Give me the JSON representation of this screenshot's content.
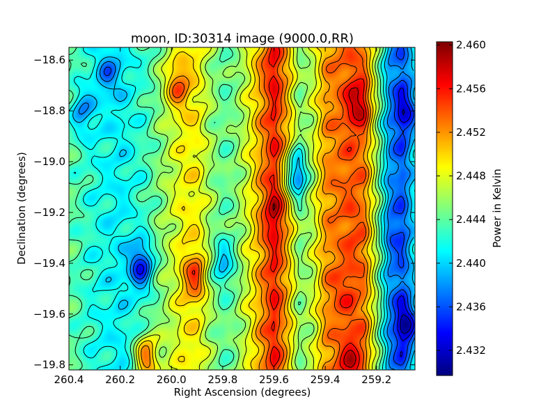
{
  "chart_data": {
    "type": "heatmap",
    "title": "moon, ID:30314 image (9000.0,RR)",
    "xlabel": "Right Ascension (degrees)",
    "ylabel": "Declination (degrees)",
    "colorbar_label": "Power in Kelvin",
    "xlim": [
      260.4,
      259.05
    ],
    "ylim": [
      -19.82,
      -18.55
    ],
    "x_ticks": [
      260.4,
      260.2,
      260.0,
      259.8,
      259.6,
      259.4,
      259.2
    ],
    "x_tick_labels": [
      "260.4",
      "260.2",
      "260.0",
      "259.8",
      "259.6",
      "259.4",
      "259.2"
    ],
    "y_ticks": [
      -18.6,
      -18.8,
      -19.0,
      -19.2,
      -19.4,
      -19.6,
      -19.8
    ],
    "y_tick_labels": [
      "−18.6",
      "−18.8",
      "−19.0",
      "−19.2",
      "−19.4",
      "−19.6",
      "−19.8"
    ],
    "colorbar_range": [
      2.4297,
      2.4603
    ],
    "colorbar_ticks": [
      2.432,
      2.436,
      2.44,
      2.444,
      2.448,
      2.452,
      2.456,
      2.46
    ],
    "colorbar_tick_labels": [
      "2.432",
      "2.436",
      "2.440",
      "2.444",
      "2.448",
      "2.452",
      "2.456",
      "2.460"
    ],
    "colormap": "jet",
    "contour_color": "#000000",
    "column_profile": {
      "ra": [
        260.4,
        260.3,
        260.2,
        260.1,
        260.0,
        259.95,
        259.9,
        259.85,
        259.8,
        259.75,
        259.7,
        259.65,
        259.6,
        259.55,
        259.5,
        259.45,
        259.4,
        259.35,
        259.3,
        259.25,
        259.2,
        259.15,
        259.1,
        259.05
      ],
      "kelvin": [
        2.444,
        2.442,
        2.441,
        2.443,
        2.447,
        2.449,
        2.449,
        2.446,
        2.444,
        2.445,
        2.448,
        2.452,
        2.456,
        2.451,
        2.445,
        2.447,
        2.452,
        2.453,
        2.454,
        2.453,
        2.446,
        2.438,
        2.436,
        2.441
      ]
    },
    "features": [
      {
        "ra": 259.6,
        "dec": -19.2,
        "kelvin": 2.459
      },
      {
        "ra": 259.6,
        "dec": -18.65,
        "kelvin": 2.457
      },
      {
        "ra": 259.27,
        "dec": -18.77,
        "kelvin": 2.459
      },
      {
        "ra": 259.3,
        "dec": -19.78,
        "kelvin": 2.458
      },
      {
        "ra": 259.91,
        "dec": -19.45,
        "kelvin": 2.455
      },
      {
        "ra": 259.98,
        "dec": -18.7,
        "kelvin": 2.454
      },
      {
        "ra": 260.1,
        "dec": -19.77,
        "kelvin": 2.453
      },
      {
        "ra": 259.34,
        "dec": -19.51,
        "kelvin": 2.455
      },
      {
        "ra": 259.27,
        "dec": -19.3,
        "kelvin": 2.454
      },
      {
        "ra": 260.12,
        "dec": -19.41,
        "kelvin": 2.434
      },
      {
        "ra": 259.08,
        "dec": -19.64,
        "kelvin": 2.431
      },
      {
        "ra": 259.08,
        "dec": -18.8,
        "kelvin": 2.433
      },
      {
        "ra": 259.14,
        "dec": -19.28,
        "kelvin": 2.436
      },
      {
        "ra": 259.8,
        "dec": -19.4,
        "kelvin": 2.439
      },
      {
        "ra": 260.25,
        "dec": -18.65,
        "kelvin": 2.437
      },
      {
        "ra": 259.52,
        "dec": -19.05,
        "kelvin": 2.438
      },
      {
        "ra": 260.35,
        "dec": -18.8,
        "kelvin": 2.438
      }
    ]
  }
}
